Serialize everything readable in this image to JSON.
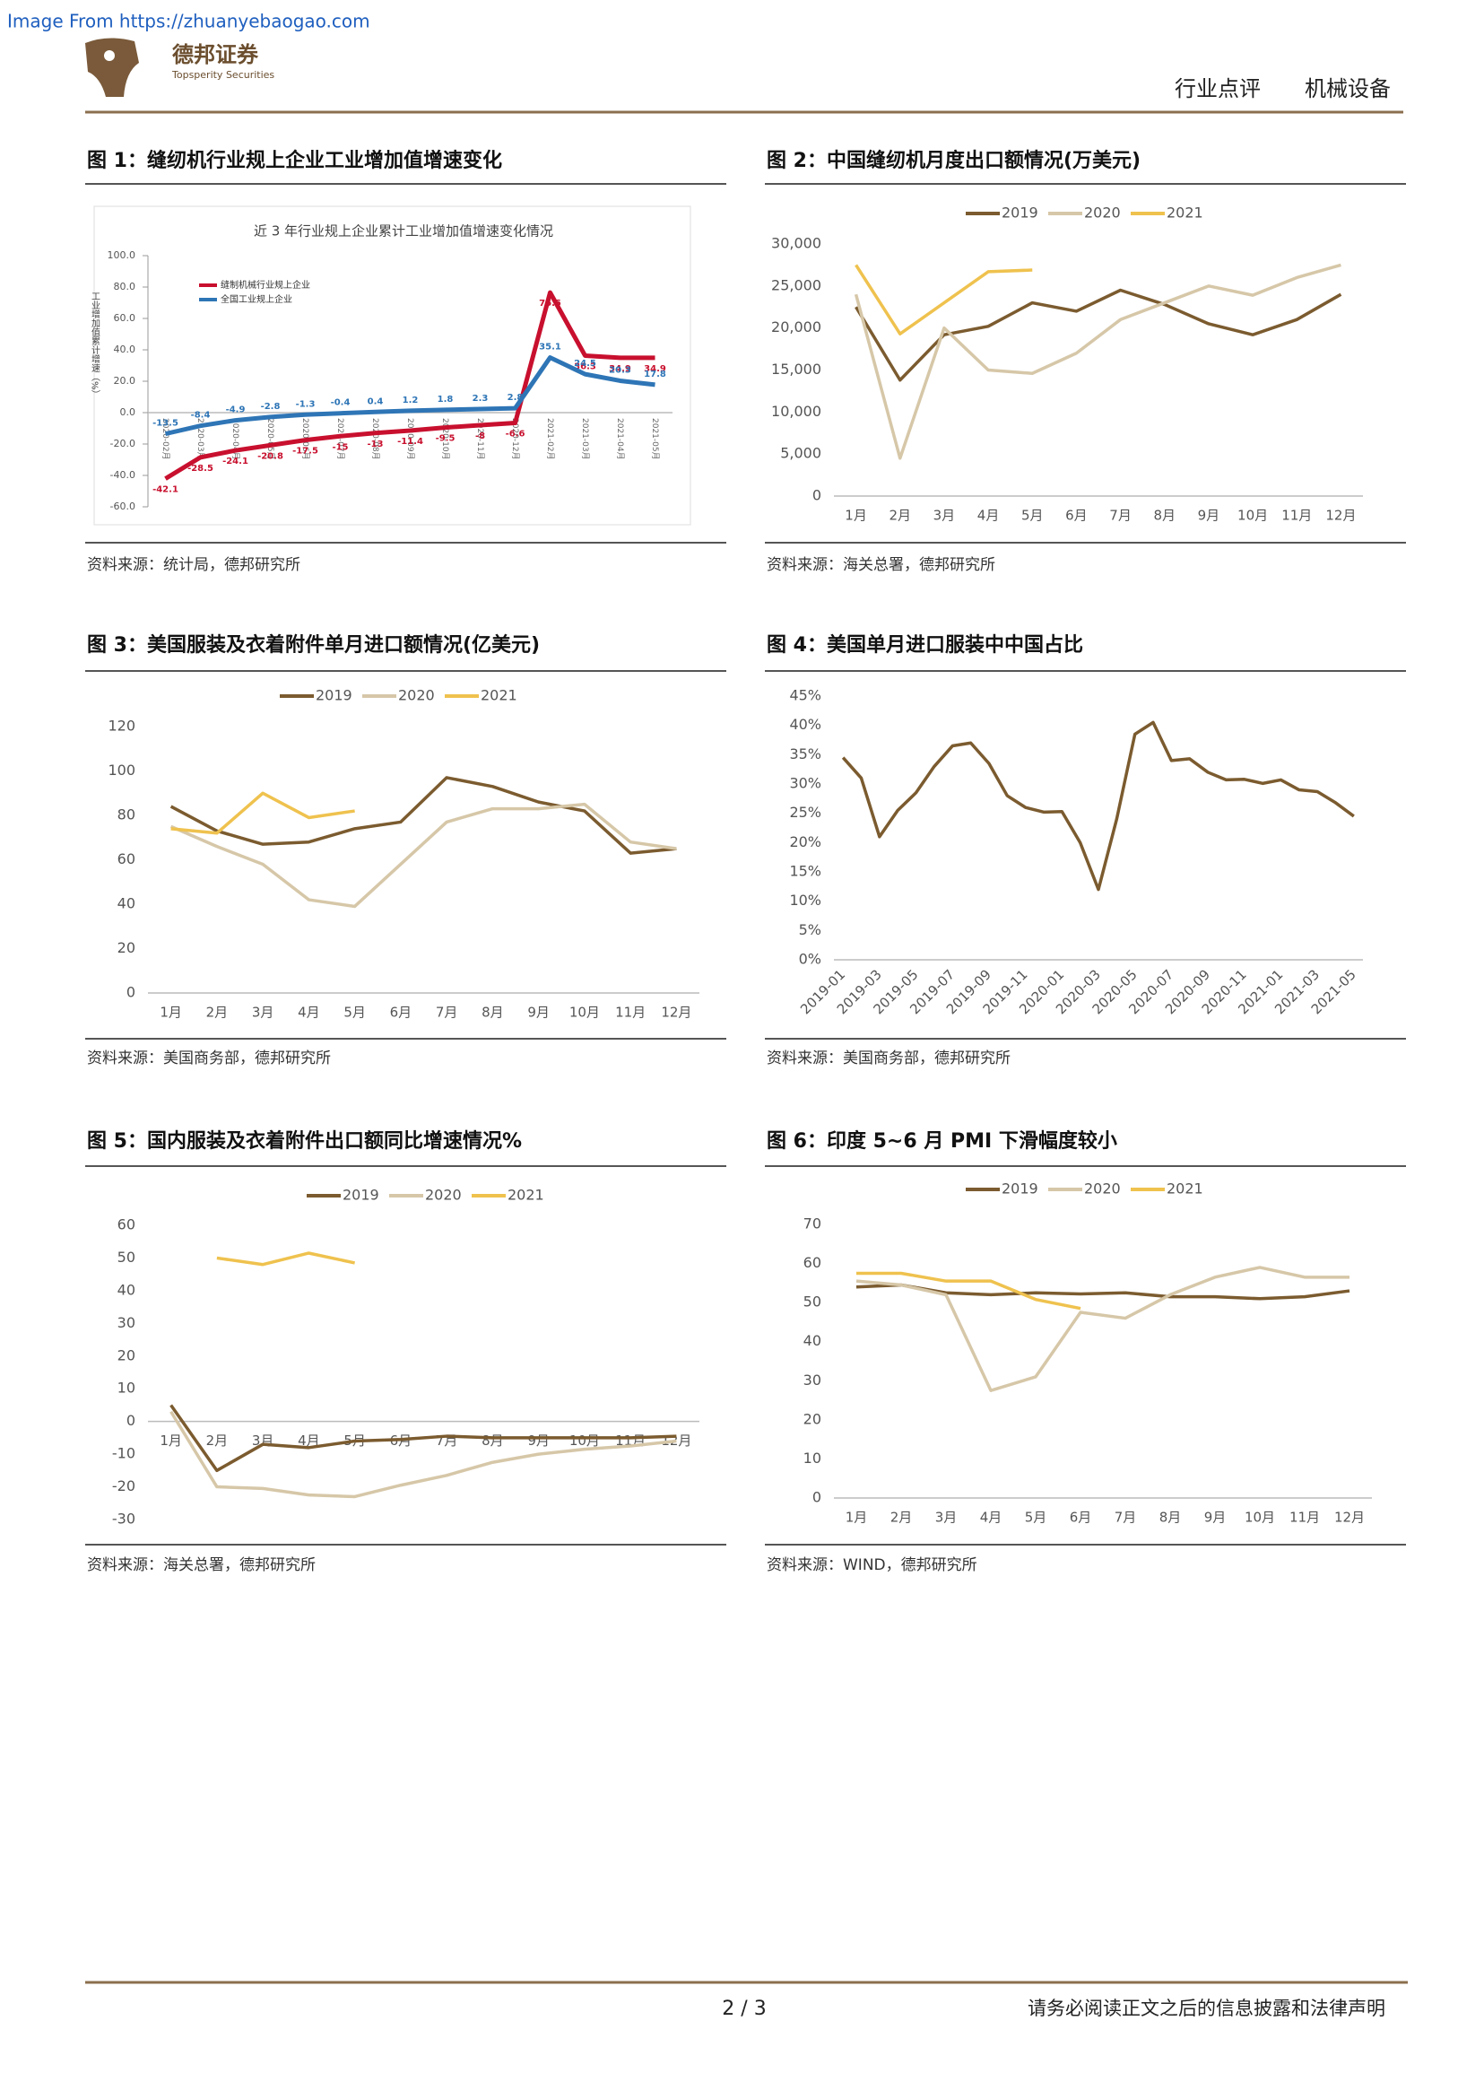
{
  "watermark": "Image From https://zhuanyebaogao.com",
  "header": {
    "logo_name": "德邦证券",
    "logo_sub": "Topsperity Securities",
    "tags": [
      "行业点评",
      "机械设备"
    ]
  },
  "chart_data": [
    {
      "type": "line",
      "title": "图 1：缝纫机行业规上企业工业增加值增速变化",
      "source": "资料来源：统计局，德邦研究所",
      "subtitle": "近 3 年行业规上企业累计工业增加值增速变化情况",
      "y_label": "工业增加值累计增速（%）",
      "categories": [
        "2020-02月",
        "2020-03月",
        "2020-04月",
        "2020-05月",
        "2020-06月",
        "2020-07月",
        "2020-08月",
        "2020-09月",
        "2020-10月",
        "2020-11月",
        "2020-12月",
        "2021-02月",
        "2021-03月",
        "2021-04月",
        "2021-05月"
      ],
      "series": [
        {
          "name": "缝制机械行业规上企业",
          "color": "#c8102e",
          "data_labels": true,
          "values": [
            -42.1,
            -28.5,
            -24.1,
            -20.8,
            -17.5,
            -15.0,
            -13.0,
            -11.4,
            -9.5,
            -8.0,
            -6.6,
            76.5,
            36.3,
            34.9,
            34.9
          ]
        },
        {
          "name": "全国工业规上企业",
          "color": "#2e75b6",
          "data_labels": true,
          "values": [
            -13.5,
            -8.4,
            -4.9,
            -2.8,
            -1.3,
            -0.4,
            0.4,
            1.2,
            1.8,
            2.3,
            2.8,
            35.1,
            24.5,
            20.3,
            17.8
          ]
        }
      ],
      "ylim": [
        -60,
        100
      ],
      "yticks": [
        {
          "value": -60,
          "label": "-60.0"
        },
        {
          "value": -40,
          "label": "-40.0"
        },
        {
          "value": -20,
          "label": "-20.0"
        },
        {
          "value": 0,
          "label": "0.0"
        },
        {
          "value": 20,
          "label": "20.0"
        },
        {
          "value": 40,
          "label": "40.0"
        },
        {
          "value": 60,
          "label": "60.0"
        },
        {
          "value": 80,
          "label": "80.0"
        },
        {
          "value": 100,
          "label": "100.0"
        }
      ],
      "legend": "upper left"
    },
    {
      "type": "line",
      "title": "图 2：中国缝纫机月度出口额情况(万美元)",
      "source": "资料来源：海关总署，德邦研究所",
      "categories": [
        "1月",
        "2月",
        "3月",
        "4月",
        "5月",
        "6月",
        "7月",
        "8月",
        "9月",
        "10月",
        "11月",
        "12月"
      ],
      "series": [
        {
          "name": "2019",
          "color": "#7b5b2f",
          "values": [
            22500,
            13800,
            19200,
            20200,
            23000,
            22000,
            24500,
            22800,
            20500,
            19200,
            21000,
            24000
          ]
        },
        {
          "name": "2020",
          "color": "#d6c7a8",
          "values": [
            24000,
            4500,
            20000,
            15000,
            14600,
            17000,
            21000,
            23000,
            25000,
            23900,
            26000,
            27500
          ]
        },
        {
          "name": "2021",
          "color": "#efc24e",
          "values": [
            27500,
            19300,
            23000,
            26700,
            26900,
            null,
            null,
            null,
            null,
            null,
            null,
            null
          ]
        }
      ],
      "ylim": [
        0,
        30000
      ],
      "yticks": [
        0,
        {
          "value": 5000,
          "label": "5,000"
        },
        {
          "value": 10000,
          "label": "10,000"
        },
        {
          "value": 15000,
          "label": "15,000"
        },
        {
          "value": 20000,
          "label": "20,000"
        },
        {
          "value": 25000,
          "label": "25,000"
        },
        {
          "value": 30000,
          "label": "30,000"
        }
      ],
      "legend": "top"
    },
    {
      "type": "line",
      "title": "图 3：美国服装及衣着附件单月进口额情况(亿美元)",
      "source": "资料来源：美国商务部，德邦研究所",
      "categories": [
        "1月",
        "2月",
        "3月",
        "4月",
        "5月",
        "6月",
        "7月",
        "8月",
        "9月",
        "10月",
        "11月",
        "12月"
      ],
      "series": [
        {
          "name": "2019",
          "color": "#7b5b2f",
          "values": [
            84,
            73,
            67,
            68,
            74,
            77,
            97,
            93,
            86,
            82,
            63,
            65
          ]
        },
        {
          "name": "2020",
          "color": "#d6c7a8",
          "values": [
            75,
            66,
            58,
            42,
            39,
            58,
            77,
            83,
            83,
            85,
            68,
            65
          ]
        },
        {
          "name": "2021",
          "color": "#efc24e",
          "values": [
            74,
            72,
            90,
            79,
            82,
            null,
            null,
            null,
            null,
            null,
            null,
            null
          ]
        }
      ],
      "ylim": [
        0,
        120
      ],
      "yticks": [
        0,
        20,
        40,
        60,
        80,
        100,
        120
      ],
      "legend": "top"
    },
    {
      "type": "line",
      "title": "图 4：美国单月进口服装中中国占比",
      "source": "资料来源：美国商务部，德邦研究所",
      "categories": [
        "2019-01",
        null,
        "2019-03",
        null,
        "2019-05",
        null,
        "2019-07",
        null,
        "2019-09",
        null,
        "2019-11",
        null,
        "2020-01",
        null,
        "2020-03",
        null,
        "2020-05",
        null,
        "2020-07",
        null,
        "2020-09",
        null,
        "2020-11",
        null,
        "2021-01",
        null,
        "2021-03",
        null,
        "2021-05"
      ],
      "series": [
        {
          "color": "#7b5b2f",
          "values": [
            34.5,
            31,
            21,
            25.5,
            28.5,
            33,
            36.5,
            37,
            33.5,
            28,
            26,
            25.2,
            25.3,
            20,
            12,
            24,
            38.5,
            40.5,
            34,
            34.3,
            32,
            30.7,
            30.8,
            30.1,
            30.7,
            29,
            28.7,
            26.8,
            24.5
          ]
        }
      ],
      "ylim": [
        0,
        45
      ],
      "yticks": [
        {
          "value": 0,
          "label": "0%"
        },
        {
          "value": 5,
          "label": "5%"
        },
        {
          "value": 10,
          "label": "10%"
        },
        {
          "value": 15,
          "label": "15%"
        },
        {
          "value": 20,
          "label": "20%"
        },
        {
          "value": 25,
          "label": "25%"
        },
        {
          "value": 30,
          "label": "30%"
        },
        {
          "value": 35,
          "label": "35%"
        },
        {
          "value": 40,
          "label": "40%"
        },
        {
          "value": 45,
          "label": "45%"
        }
      ]
    },
    {
      "type": "line",
      "title": "图 5：国内服装及衣着附件出口额同比增速情况%",
      "source": "资料来源：海关总署，德邦研究所",
      "categories": [
        "1月",
        "2月",
        "3月",
        "4月",
        "5月",
        "6月",
        "7月",
        "8月",
        "9月",
        "10月",
        "11月",
        "12月"
      ],
      "series": [
        {
          "name": "2019",
          "color": "#7b5b2f",
          "values": [
            5,
            -15,
            -7,
            -8,
            -6,
            -5.5,
            -4.5,
            -5,
            -5,
            -5,
            -5,
            -4.5
          ]
        },
        {
          "name": "2020",
          "color": "#d6c7a8",
          "values": [
            3,
            -20,
            -20.5,
            -22.5,
            -23,
            -19.5,
            -16.5,
            -12.5,
            -10,
            -8.5,
            -7.5,
            -6
          ]
        },
        {
          "name": "2021",
          "color": "#efc24e",
          "values": [
            null,
            50,
            48,
            51.5,
            48.5,
            null,
            null,
            null,
            null,
            null,
            null,
            null
          ]
        }
      ],
      "ylim": [
        -30,
        60
      ],
      "yticks": [
        -30,
        -20,
        -10,
        0,
        10,
        20,
        30,
        40,
        50,
        60
      ],
      "legend": "top"
    },
    {
      "type": "line",
      "title": "图 6：印度 5~6 月 PMI 下滑幅度较小",
      "source": "资料来源：WIND，德邦研究所",
      "categories": [
        "1月",
        "2月",
        "3月",
        "4月",
        "5月",
        "6月",
        "7月",
        "8月",
        "9月",
        "10月",
        "11月",
        "12月"
      ],
      "series": [
        {
          "name": "2019",
          "color": "#7b5b2f",
          "values": [
            54,
            54.5,
            52.5,
            52,
            52.5,
            52.2,
            52.5,
            51.5,
            51.5,
            51,
            51.5,
            53
          ]
        },
        {
          "name": "2020",
          "color": "#d6c7a8",
          "values": [
            55.5,
            54.5,
            52,
            27.5,
            31,
            47.5,
            46,
            52,
            56.5,
            59,
            56.5,
            56.5
          ]
        },
        {
          "name": "2021",
          "color": "#efc24e",
          "values": [
            57.5,
            57.5,
            55.5,
            55.5,
            50.8,
            48.5,
            null,
            null,
            null,
            null,
            null,
            null
          ]
        }
      ],
      "ylim": [
        0,
        70
      ],
      "yticks": [
        0,
        10,
        20,
        30,
        40,
        50,
        60,
        70
      ],
      "legend": "top"
    }
  ],
  "footer": {
    "page": "2 / 3",
    "disclaimer": "请务必阅读正文之后的信息披露和法律声明"
  }
}
